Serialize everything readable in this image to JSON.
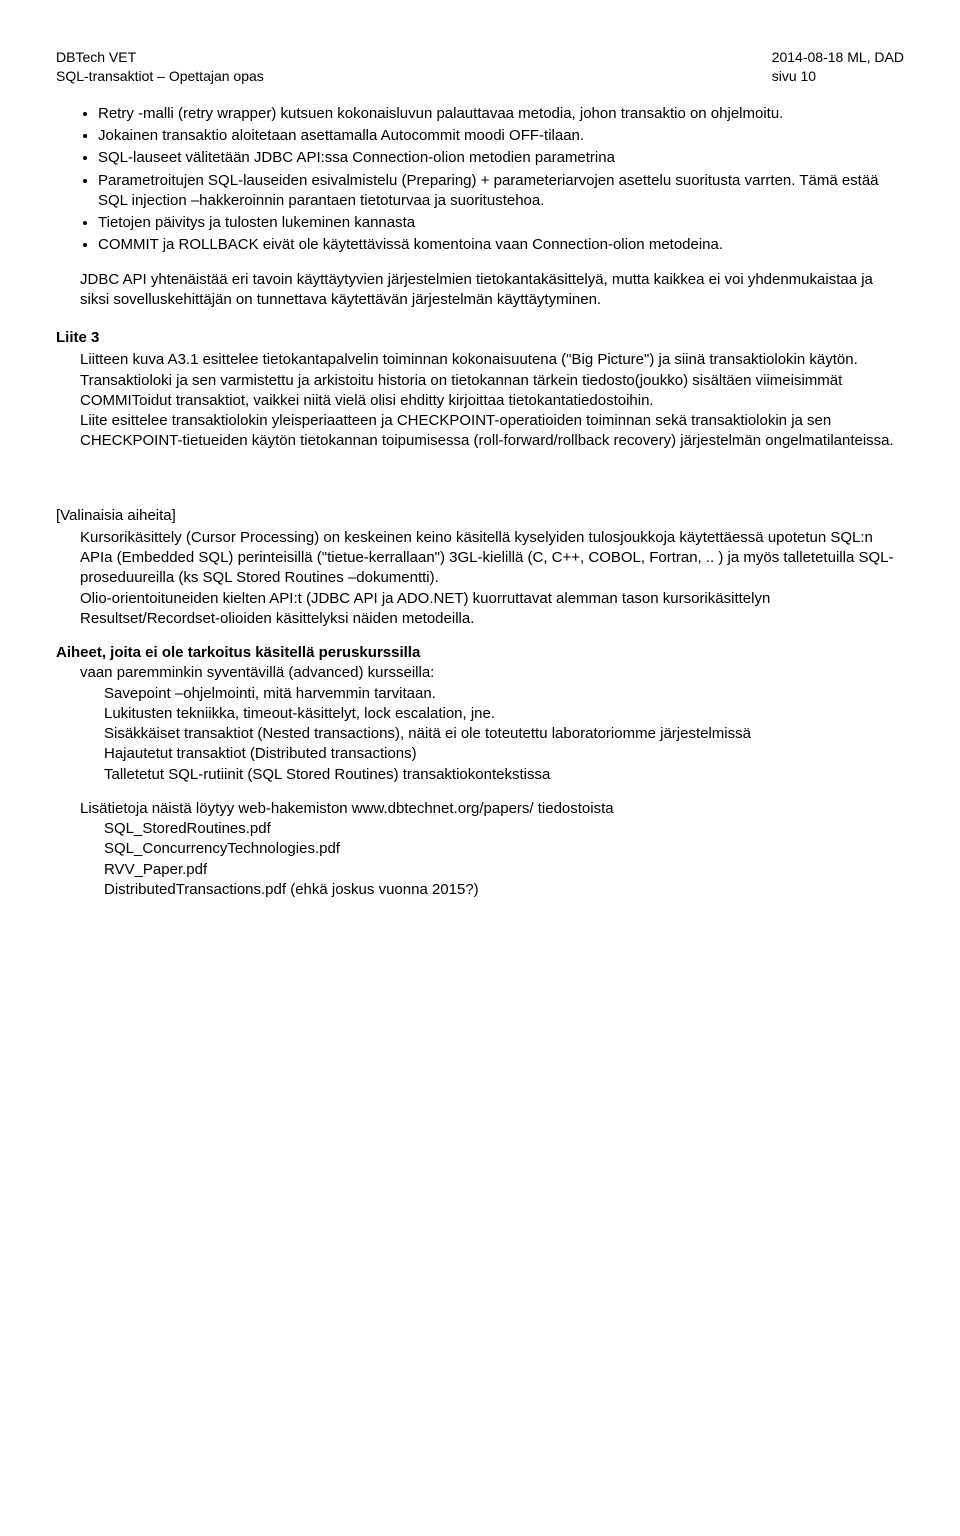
{
  "header": {
    "left1": "DBTech VET",
    "left2": "SQL-transaktiot – Opettajan opas",
    "right1": "2014-08-18 ML, DAD",
    "right2": "sivu 10"
  },
  "topBullets": [
    "Retry -malli (retry wrapper) kutsuen kokonaisluvun palauttavaa metodia, johon transaktio on ohjelmoitu.",
    "Jokainen transaktio aloitetaan asettamalla Autocommit moodi OFF-tilaan.",
    "SQL-lauseet välitetään JDBC API:ssa Connection-olion metodien parametrina",
    "Parametroitujen SQL-lauseiden esivalmistelu (Preparing) + parameteriarvojen asettelu suoritusta varrten. Tämä estää SQL injection –hakkeroinnin parantaen tietoturvaa ja suoritustehoa.",
    "Tietojen päivitys ja tulosten lukeminen kannasta",
    "COMMIT ja ROLLBACK eivät ole käytettävissä komentoina vaan Connection-olion metodeina."
  ],
  "jdbcPara": "JDBC API yhtenäistää eri tavoin käyttäytyvien järjestelmien tietokantakäsittelyä, mutta kaikkea ei voi yhdenmukaistaa ja siksi sovelluskehittäjän on tunnettava käytettävän järjestelmän käyttäytyminen.",
  "liite3": {
    "label": "Liite 3",
    "p1": "Liitteen kuva A3.1 esittelee tietokantapalvelin toiminnan kokonaisuutena (\"Big Picture\") ja siinä transaktiolokin käytön. Transaktioloki ja sen varmistettu ja arkistoitu historia on tietokannan tärkein tiedosto(joukko) sisältäen viimeisimmät COMMIToidut transaktiot, vaikkei niitä vielä olisi ehditty kirjoittaa tietokantatiedostoihin.",
    "p2": "Liite esittelee transaktiolokin yleisperiaatteen ja CHECKPOINT-operatioiden toiminnan sekä transaktiolokin ja sen CHECKPOINT-tietueiden käytön tietokannan toipumisessa (roll-forward/rollback recovery) järjestelmän ongelmatilanteissa."
  },
  "valinaisia": {
    "title": "[Valinaisia aiheita]",
    "p1": "Kursorikäsittely (Cursor Processing) on keskeinen keino käsitellä kyselyiden tulosjoukkoja käytettäessä upotetun SQL:n APIa (Embedded SQL) perinteisillä (\"tietue-kerrallaan\") 3GL-kielillä (C, C++, COBOL, Fortran, .. ) ja myös talletetuilla SQL-proseduureilla (ks SQL Stored Routines –dokumentti).",
    "p2": "Olio-orientoituneiden kielten API:t (JDBC API ja ADO.NET) kuorruttavat alemman tason kursorikäsittelyn Resultset/Recordset-olioiden käsittelyksi näiden metodeilla."
  },
  "aiheet": {
    "titleBold": "Aiheet, joita ei ole tarkoitus käsitellä peruskurssilla",
    "intro": "vaan paremminkin syventävillä (advanced) kursseilla:",
    "items": [
      "Savepoint –ohjelmointi, mitä harvemmin tarvitaan.",
      "Lukitusten tekniikka, timeout-käsittelyt, lock escalation, jne.",
      "Sisäkkäiset transaktiot (Nested transactions), näitä ei ole toteutettu laboratoriomme järjestelmissä",
      "Hajautetut transaktiot (Distributed transactions)",
      "Talletetut SQL-rutiinit (SQL Stored Routines) transaktiokontekstissa"
    ]
  },
  "lisatiedot": {
    "intro": "Lisätietoja näistä löytyy web-hakemiston www.dbtechnet.org/papers/ tiedostoista",
    "files": [
      "SQL_StoredRoutines.pdf",
      "SQL_ConcurrencyTechnologies.pdf",
      "RVV_Paper.pdf",
      "DistributedTransactions.pdf  (ehkä joskus vuonna 2015?)"
    ]
  }
}
